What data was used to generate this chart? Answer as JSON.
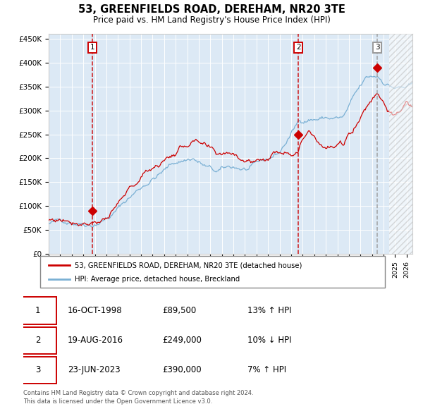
{
  "title": "53, GREENFIELDS ROAD, DEREHAM, NR20 3TE",
  "subtitle": "Price paid vs. HM Land Registry's House Price Index (HPI)",
  "ylabel_ticks": [
    "£0",
    "£50K",
    "£100K",
    "£150K",
    "£200K",
    "£250K",
    "£300K",
    "£350K",
    "£400K",
    "£450K"
  ],
  "ytick_values": [
    0,
    50000,
    100000,
    150000,
    200000,
    250000,
    300000,
    350000,
    400000,
    450000
  ],
  "ylim": [
    0,
    460000
  ],
  "xlim_start": 1995.0,
  "xlim_end": 2026.5,
  "transaction_dates": [
    1998.79,
    2016.63,
    2023.47
  ],
  "transaction_prices": [
    89500,
    249000,
    390000
  ],
  "transaction_labels": [
    "1",
    "2",
    "3"
  ],
  "vline_colors": [
    "#cc0000",
    "#cc0000",
    "#999999"
  ],
  "plot_bg_color": "#dce9f5",
  "hatch_region_start": 2024.5,
  "legend_entries": [
    "53, GREENFIELDS ROAD, DEREHAM, NR20 3TE (detached house)",
    "HPI: Average price, detached house, Breckland"
  ],
  "legend_colors": [
    "#cc0000",
    "#7ab0d4"
  ],
  "table_data": [
    [
      "1",
      "16-OCT-1998",
      "£89,500",
      "13% ↑ HPI"
    ],
    [
      "2",
      "19-AUG-2016",
      "£249,000",
      "10% ↓ HPI"
    ],
    [
      "3",
      "23-JUN-2023",
      "£390,000",
      "7% ↑ HPI"
    ]
  ],
  "footer_text": "Contains HM Land Registry data © Crown copyright and database right 2024.\nThis data is licensed under the Open Government Licence v3.0.",
  "red_line_color": "#cc0000",
  "blue_line_color": "#7ab0d4",
  "title_fontsize": 11,
  "subtitle_fontsize": 9
}
